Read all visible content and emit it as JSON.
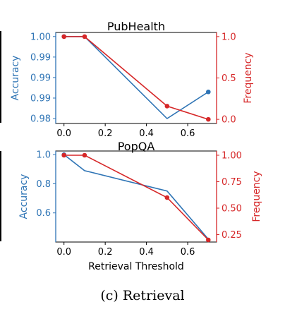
{
  "caption": "(c) Retrieval",
  "colors": {
    "accuracy": "#2e74b5",
    "frequency": "#d62728"
  },
  "chart_data": [
    {
      "type": "line",
      "title": "PubHealth",
      "xlabel": "",
      "ylabel": "Accuracy",
      "y2label": "Frequency",
      "xlim": [
        -0.04,
        0.74
      ],
      "xticks": [
        0.0,
        0.2,
        0.4,
        0.6
      ],
      "xtick_labels": [
        "0.0",
        "0.2",
        "0.4",
        "0.6"
      ],
      "ylim": [
        0.9788,
        1.001
      ],
      "yticks": [
        0.98,
        0.985,
        0.99,
        0.995,
        1.0
      ],
      "ytick_labels": [
        "0.98",
        "0.99",
        "0.99",
        "0.99",
        "1.00"
      ],
      "y2lim": [
        -0.05,
        1.05
      ],
      "y2ticks": [
        0.0,
        0.5,
        1.0
      ],
      "y2tick_labels": [
        "0.0",
        "0.5",
        "1.0"
      ],
      "series": [
        {
          "name": "Accuracy",
          "axis": "left",
          "marker_at": [
            0,
            3
          ],
          "x": [
            0.0,
            0.1,
            0.5,
            0.7
          ],
          "y": [
            1.0,
            1.0,
            0.98,
            0.9865
          ]
        },
        {
          "name": "Frequency",
          "axis": "right",
          "marker_at": [
            0,
            1,
            2,
            3
          ],
          "x": [
            0.0,
            0.1,
            0.5,
            0.7
          ],
          "y": [
            1.0,
            1.0,
            0.16,
            0.0
          ]
        }
      ]
    },
    {
      "type": "line",
      "title": "PopQA",
      "xlabel": "Retrieval Threshold",
      "ylabel": "Accuracy",
      "y2label": "Frequency",
      "xlim": [
        -0.04,
        0.74
      ],
      "xticks": [
        0.0,
        0.2,
        0.4,
        0.6
      ],
      "xtick_labels": [
        "0.0",
        "0.2",
        "0.4",
        "0.6"
      ],
      "ylim": [
        0.4,
        1.025
      ],
      "yticks": [
        0.6,
        0.8,
        1.0
      ],
      "ytick_labels": [
        "0.6",
        "0.8",
        "1.0"
      ],
      "y2lim": [
        0.18,
        1.04
      ],
      "y2ticks": [
        0.25,
        0.5,
        0.75,
        1.0
      ],
      "y2tick_labels": [
        "0.25",
        "0.50",
        "0.75",
        "1.00"
      ],
      "series": [
        {
          "name": "Accuracy",
          "axis": "left",
          "marker_at": [
            0
          ],
          "x": [
            0.0,
            0.1,
            0.5,
            0.7
          ],
          "y": [
            1.0,
            0.89,
            0.75,
            0.42
          ]
        },
        {
          "name": "Frequency",
          "axis": "right",
          "marker_at": [
            0,
            1,
            2,
            3
          ],
          "x": [
            0.0,
            0.1,
            0.5,
            0.7
          ],
          "y": [
            1.0,
            1.0,
            0.6,
            0.2
          ]
        }
      ]
    }
  ]
}
